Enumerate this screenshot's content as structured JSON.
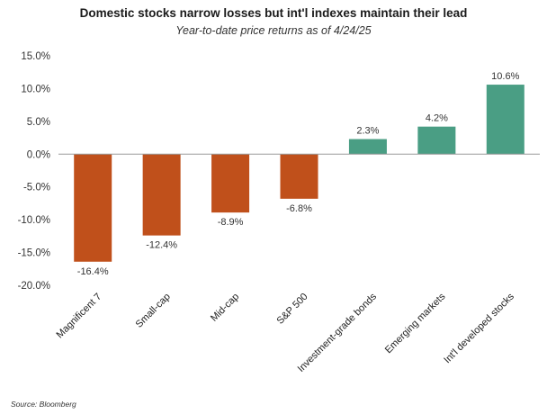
{
  "chart_data": {
    "type": "bar",
    "title": "Domestic stocks narrow losses but int'l indexes maintain their lead",
    "subtitle": "Year-to-date price returns as of 4/24/25",
    "categories": [
      "Magnificent 7",
      "Small-cap",
      "Mid-cap",
      "S&P 500",
      "Investment-grade bonds",
      "Emerging markets",
      "Int'l developed stocks"
    ],
    "values": [
      -16.4,
      -12.4,
      -8.9,
      -6.8,
      2.3,
      4.2,
      10.6
    ],
    "data_labels": [
      "-16.4%",
      "-12.4%",
      "-8.9%",
      "-6.8%",
      "2.3%",
      "4.2%",
      "10.6%"
    ],
    "yticks": [
      15,
      10,
      5,
      0,
      -5,
      -10,
      -15,
      -20
    ],
    "ytick_labels": [
      "15.0%",
      "10.0%",
      "5.0%",
      "0.0%",
      "-5.0%",
      "-10.0%",
      "-15.0%",
      "-20.0%"
    ],
    "ylim": [
      -20,
      15
    ],
    "grid": false,
    "colors": {
      "negative": "#C0501B",
      "positive": "#4A9E84",
      "zero_line": "#9a9a9a"
    }
  },
  "footer": {
    "source": "Source: Bloomberg"
  }
}
